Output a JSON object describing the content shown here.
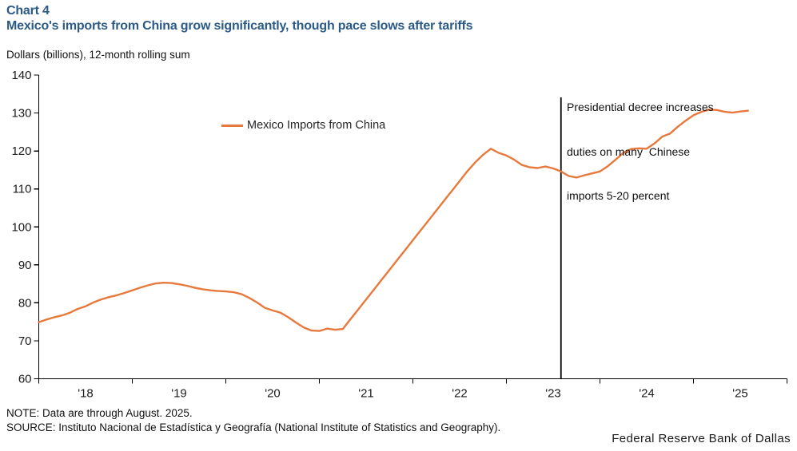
{
  "header": {
    "chart_label": "Chart 4",
    "title": "Mexico's imports from China grow significantly, though pace slows after tariffs",
    "units_label": "Dollars (billions), 12-month rolling sum"
  },
  "chart_data": {
    "type": "line",
    "title": "Mexico's imports from China grow significantly, though pace slows after tariffs",
    "ylabel": "Dollars (billions), 12-month rolling sum",
    "xlabel": "",
    "ylim": [
      60,
      140
    ],
    "y_tick_step": 10,
    "y_tick_labels": [
      "60",
      "70",
      "80",
      "90",
      "100",
      "110",
      "120",
      "130",
      "140"
    ],
    "x_tick_labels": [
      "'18",
      "'19",
      "'20",
      "'21",
      "'22",
      "'23",
      "'24",
      "'25"
    ],
    "x_monthly_range": "Jan 2018 to Aug 2025",
    "grid": false,
    "legend": {
      "position": "inside-top-left",
      "entries": [
        {
          "label": "Mexico Imports from China",
          "color": "#E8793C"
        }
      ]
    },
    "series": [
      {
        "name": "Mexico Imports from China",
        "color": "#E8793C",
        "monthly_values": [
          74.9,
          75.6,
          76.2,
          76.7,
          77.4,
          78.4,
          79.1,
          80.1,
          80.9,
          81.5,
          82.0,
          82.6,
          83.3,
          84.0,
          84.6,
          85.1,
          85.3,
          85.2,
          84.9,
          84.5,
          84.0,
          83.6,
          83.3,
          83.1,
          83.0,
          82.8,
          82.3,
          81.3,
          80.1,
          78.7,
          78.0,
          77.4,
          76.2,
          74.8,
          73.5,
          72.7,
          72.6,
          73.2,
          72.9,
          73.1,
          75.7,
          78.3,
          80.9,
          83.5,
          86.1,
          88.7,
          91.3,
          93.9,
          96.5,
          99.1,
          101.7,
          104.3,
          106.9,
          109.5,
          112.1,
          114.7,
          117.0,
          119.0,
          120.6,
          119.5,
          118.8,
          117.7,
          116.3,
          115.7,
          115.5,
          115.9,
          115.4,
          114.6,
          113.4,
          113.0,
          113.6,
          114.1,
          114.6,
          116.0,
          117.7,
          119.5,
          120.5,
          120.7,
          120.6,
          122.0,
          123.8,
          124.6,
          126.4,
          128.0,
          129.4,
          130.3,
          130.9,
          130.8,
          130.3,
          130.1,
          130.4,
          130.6
        ]
      }
    ],
    "event_line": {
      "month_index_from_start": 67,
      "color": "#000000",
      "label_lines": [
        "Presidential decree increases",
        "duties on many  Chinese",
        "imports 5-20 percent"
      ]
    }
  },
  "footer": {
    "note": "NOTE: Data are through August. 2025.",
    "source": "SOURCE: Instituto Nacional de Estadística y Geografía (National Institute of Statistics and Geography).",
    "org": "Federal Reserve Bank of Dallas"
  },
  "colors": {
    "accent_orange": "#E8793C",
    "title_blue": "#2B5A87",
    "axis_black": "#000000"
  }
}
